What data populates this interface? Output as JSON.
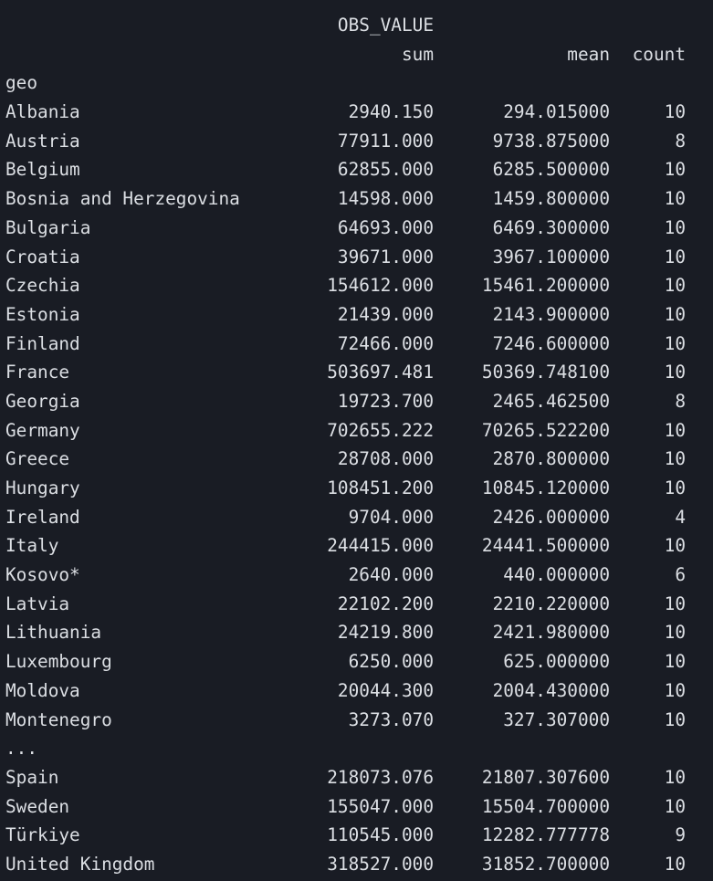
{
  "header": {
    "top_label": "OBS_VALUE",
    "col_sum": "sum",
    "col_mean": "mean",
    "col_count": "count",
    "index_name": "geo"
  },
  "rows_before": [
    {
      "geo": "Albania",
      "sum": "2940.150",
      "mean": "294.015000",
      "count": "10"
    },
    {
      "geo": "Austria",
      "sum": "77911.000",
      "mean": "9738.875000",
      "count": "8"
    },
    {
      "geo": "Belgium",
      "sum": "62855.000",
      "mean": "6285.500000",
      "count": "10"
    },
    {
      "geo": "Bosnia and Herzegovina",
      "sum": "14598.000",
      "mean": "1459.800000",
      "count": "10"
    },
    {
      "geo": "Bulgaria",
      "sum": "64693.000",
      "mean": "6469.300000",
      "count": "10"
    },
    {
      "geo": "Croatia",
      "sum": "39671.000",
      "mean": "3967.100000",
      "count": "10"
    },
    {
      "geo": "Czechia",
      "sum": "154612.000",
      "mean": "15461.200000",
      "count": "10"
    },
    {
      "geo": "Estonia",
      "sum": "21439.000",
      "mean": "2143.900000",
      "count": "10"
    },
    {
      "geo": "Finland",
      "sum": "72466.000",
      "mean": "7246.600000",
      "count": "10"
    },
    {
      "geo": "France",
      "sum": "503697.481",
      "mean": "50369.748100",
      "count": "10"
    },
    {
      "geo": "Georgia",
      "sum": "19723.700",
      "mean": "2465.462500",
      "count": "8"
    },
    {
      "geo": "Germany",
      "sum": "702655.222",
      "mean": "70265.522200",
      "count": "10"
    },
    {
      "geo": "Greece",
      "sum": "28708.000",
      "mean": "2870.800000",
      "count": "10"
    },
    {
      "geo": "Hungary",
      "sum": "108451.200",
      "mean": "10845.120000",
      "count": "10"
    },
    {
      "geo": "Ireland",
      "sum": "9704.000",
      "mean": "2426.000000",
      "count": "4"
    },
    {
      "geo": "Italy",
      "sum": "244415.000",
      "mean": "24441.500000",
      "count": "10"
    },
    {
      "geo": "Kosovo*",
      "sum": "2640.000",
      "mean": "440.000000",
      "count": "6"
    },
    {
      "geo": "Latvia",
      "sum": "22102.200",
      "mean": "2210.220000",
      "count": "10"
    },
    {
      "geo": "Lithuania",
      "sum": "24219.800",
      "mean": "2421.980000",
      "count": "10"
    },
    {
      "geo": "Luxembourg",
      "sum": "6250.000",
      "mean": "625.000000",
      "count": "10"
    },
    {
      "geo": "Moldova",
      "sum": "20044.300",
      "mean": "2004.430000",
      "count": "10"
    },
    {
      "geo": "Montenegro",
      "sum": "3273.070",
      "mean": "327.307000",
      "count": "10"
    }
  ],
  "ellipsis": "...",
  "rows_after": [
    {
      "geo": "Spain",
      "sum": "218073.076",
      "mean": "21807.307600",
      "count": "10"
    },
    {
      "geo": "Sweden",
      "sum": "155047.000",
      "mean": "15504.700000",
      "count": "10"
    },
    {
      "geo": "Türkiye",
      "sum": "110545.000",
      "mean": "12282.777778",
      "count": "9"
    },
    {
      "geo": "United Kingdom",
      "sum": "318527.000",
      "mean": "31852.700000",
      "count": "10"
    }
  ]
}
